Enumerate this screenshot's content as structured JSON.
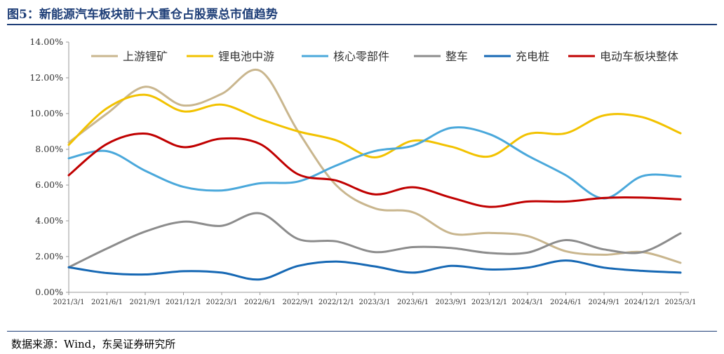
{
  "header": {
    "title": "图5：新能源汽车板块前十大重仓占股票总市值趋势"
  },
  "footer": {
    "source": "数据来源：Wind，东吴证券研究所"
  },
  "colors": {
    "title": "#1f3f78",
    "axis": "#9a9a9a",
    "series": [
      "#c9b68e",
      "#f2c200",
      "#4aa8db",
      "#8c8c8c",
      "#1668b4",
      "#c00000"
    ]
  },
  "chart_data": {
    "type": "line",
    "title": "",
    "xlabel": "",
    "ylabel": "",
    "ylim": [
      0,
      0.14
    ],
    "y_ticks": [
      0,
      0.02,
      0.04,
      0.06,
      0.08,
      0.1,
      0.12,
      0.14
    ],
    "y_tick_labels": [
      "0.00%",
      "2.00%",
      "4.00%",
      "6.00%",
      "8.00%",
      "10.00%",
      "12.00%",
      "14.00%"
    ],
    "legend_position": "top",
    "grid": false,
    "x": [
      "2021/3/1",
      "2021/6/1",
      "2021/9/1",
      "2021/12/1",
      "2022/3/1",
      "2022/6/1",
      "2022/9/1",
      "2022/12/1",
      "2023/3/1",
      "2023/6/1",
      "2023/9/1",
      "2023/12/1",
      "2024/3/1",
      "2024/6/1",
      "2024/9/1",
      "2024/12/1",
      "2025/3/1"
    ],
    "series": [
      {
        "name": "上游锂矿",
        "values": [
          0.0838,
          0.1,
          0.115,
          0.1045,
          0.111,
          0.124,
          0.09,
          0.0598,
          0.047,
          0.0448,
          0.033,
          0.0332,
          0.0315,
          0.023,
          0.021,
          0.0225,
          0.0165
        ]
      },
      {
        "name": "锂电池中游",
        "values": [
          0.0825,
          0.103,
          0.1105,
          0.1012,
          0.105,
          0.097,
          0.09,
          0.085,
          0.0755,
          0.0848,
          0.0815,
          0.076,
          0.0885,
          0.089,
          0.099,
          0.098,
          0.089
        ]
      },
      {
        "name": "核心零部件",
        "values": [
          0.075,
          0.079,
          0.068,
          0.059,
          0.057,
          0.061,
          0.062,
          0.071,
          0.079,
          0.082,
          0.092,
          0.0885,
          0.0765,
          0.0655,
          0.0525,
          0.065,
          0.0648
        ]
      },
      {
        "name": "整车",
        "values": [
          0.014,
          0.0245,
          0.034,
          0.0395,
          0.0372,
          0.0442,
          0.0298,
          0.0285,
          0.0225,
          0.0253,
          0.0248,
          0.022,
          0.0222,
          0.0292,
          0.024,
          0.0225,
          0.033
        ]
      },
      {
        "name": "充电桩",
        "values": [
          0.014,
          0.0108,
          0.01,
          0.0118,
          0.011,
          0.0072,
          0.0148,
          0.0172,
          0.0145,
          0.011,
          0.0148,
          0.0128,
          0.0138,
          0.0178,
          0.0138,
          0.012,
          0.011
        ]
      },
      {
        "name": "电动车板块整体",
        "values": [
          0.0655,
          0.083,
          0.0888,
          0.0812,
          0.086,
          0.083,
          0.066,
          0.0625,
          0.0548,
          0.0588,
          0.053,
          0.0478,
          0.0508,
          0.0508,
          0.0528,
          0.053,
          0.052
        ]
      }
    ]
  }
}
